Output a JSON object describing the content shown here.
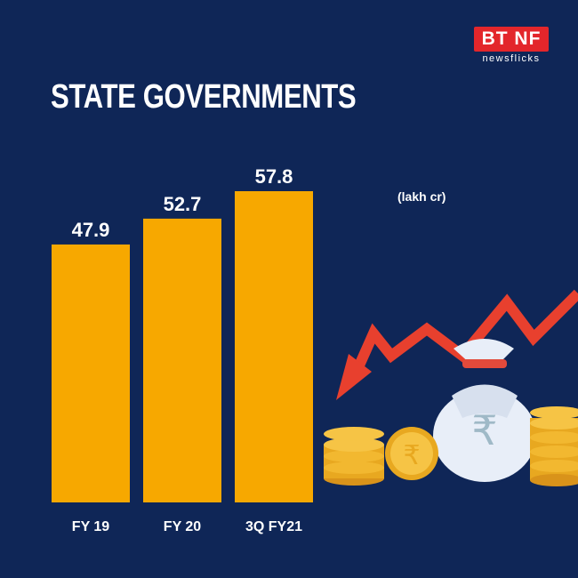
{
  "brand": {
    "badge": "BT NF",
    "sub": "newsflicks",
    "color": "#e3262b"
  },
  "background_color": "#0f2657",
  "bar_color": "#f7a800",
  "chart_data": {
    "type": "bar",
    "title": "STATE GOVERNMENTS",
    "unit": "(lakh cr)",
    "categories": [
      "FY 19",
      "FY 20",
      "3Q FY21"
    ],
    "values": [
      47.9,
      52.7,
      57.8
    ],
    "value_labels": [
      "47.9",
      "52.7",
      "57.8"
    ],
    "ylim": [
      0,
      57.8
    ],
    "grid": false,
    "legend": "none"
  },
  "illustration": {
    "items": [
      "rising-arrow-icon",
      "coin-stack-icon",
      "rupee-coin-icon",
      "money-bag-icon"
    ],
    "bag_symbol": "₹",
    "coin_symbol": "₹"
  }
}
